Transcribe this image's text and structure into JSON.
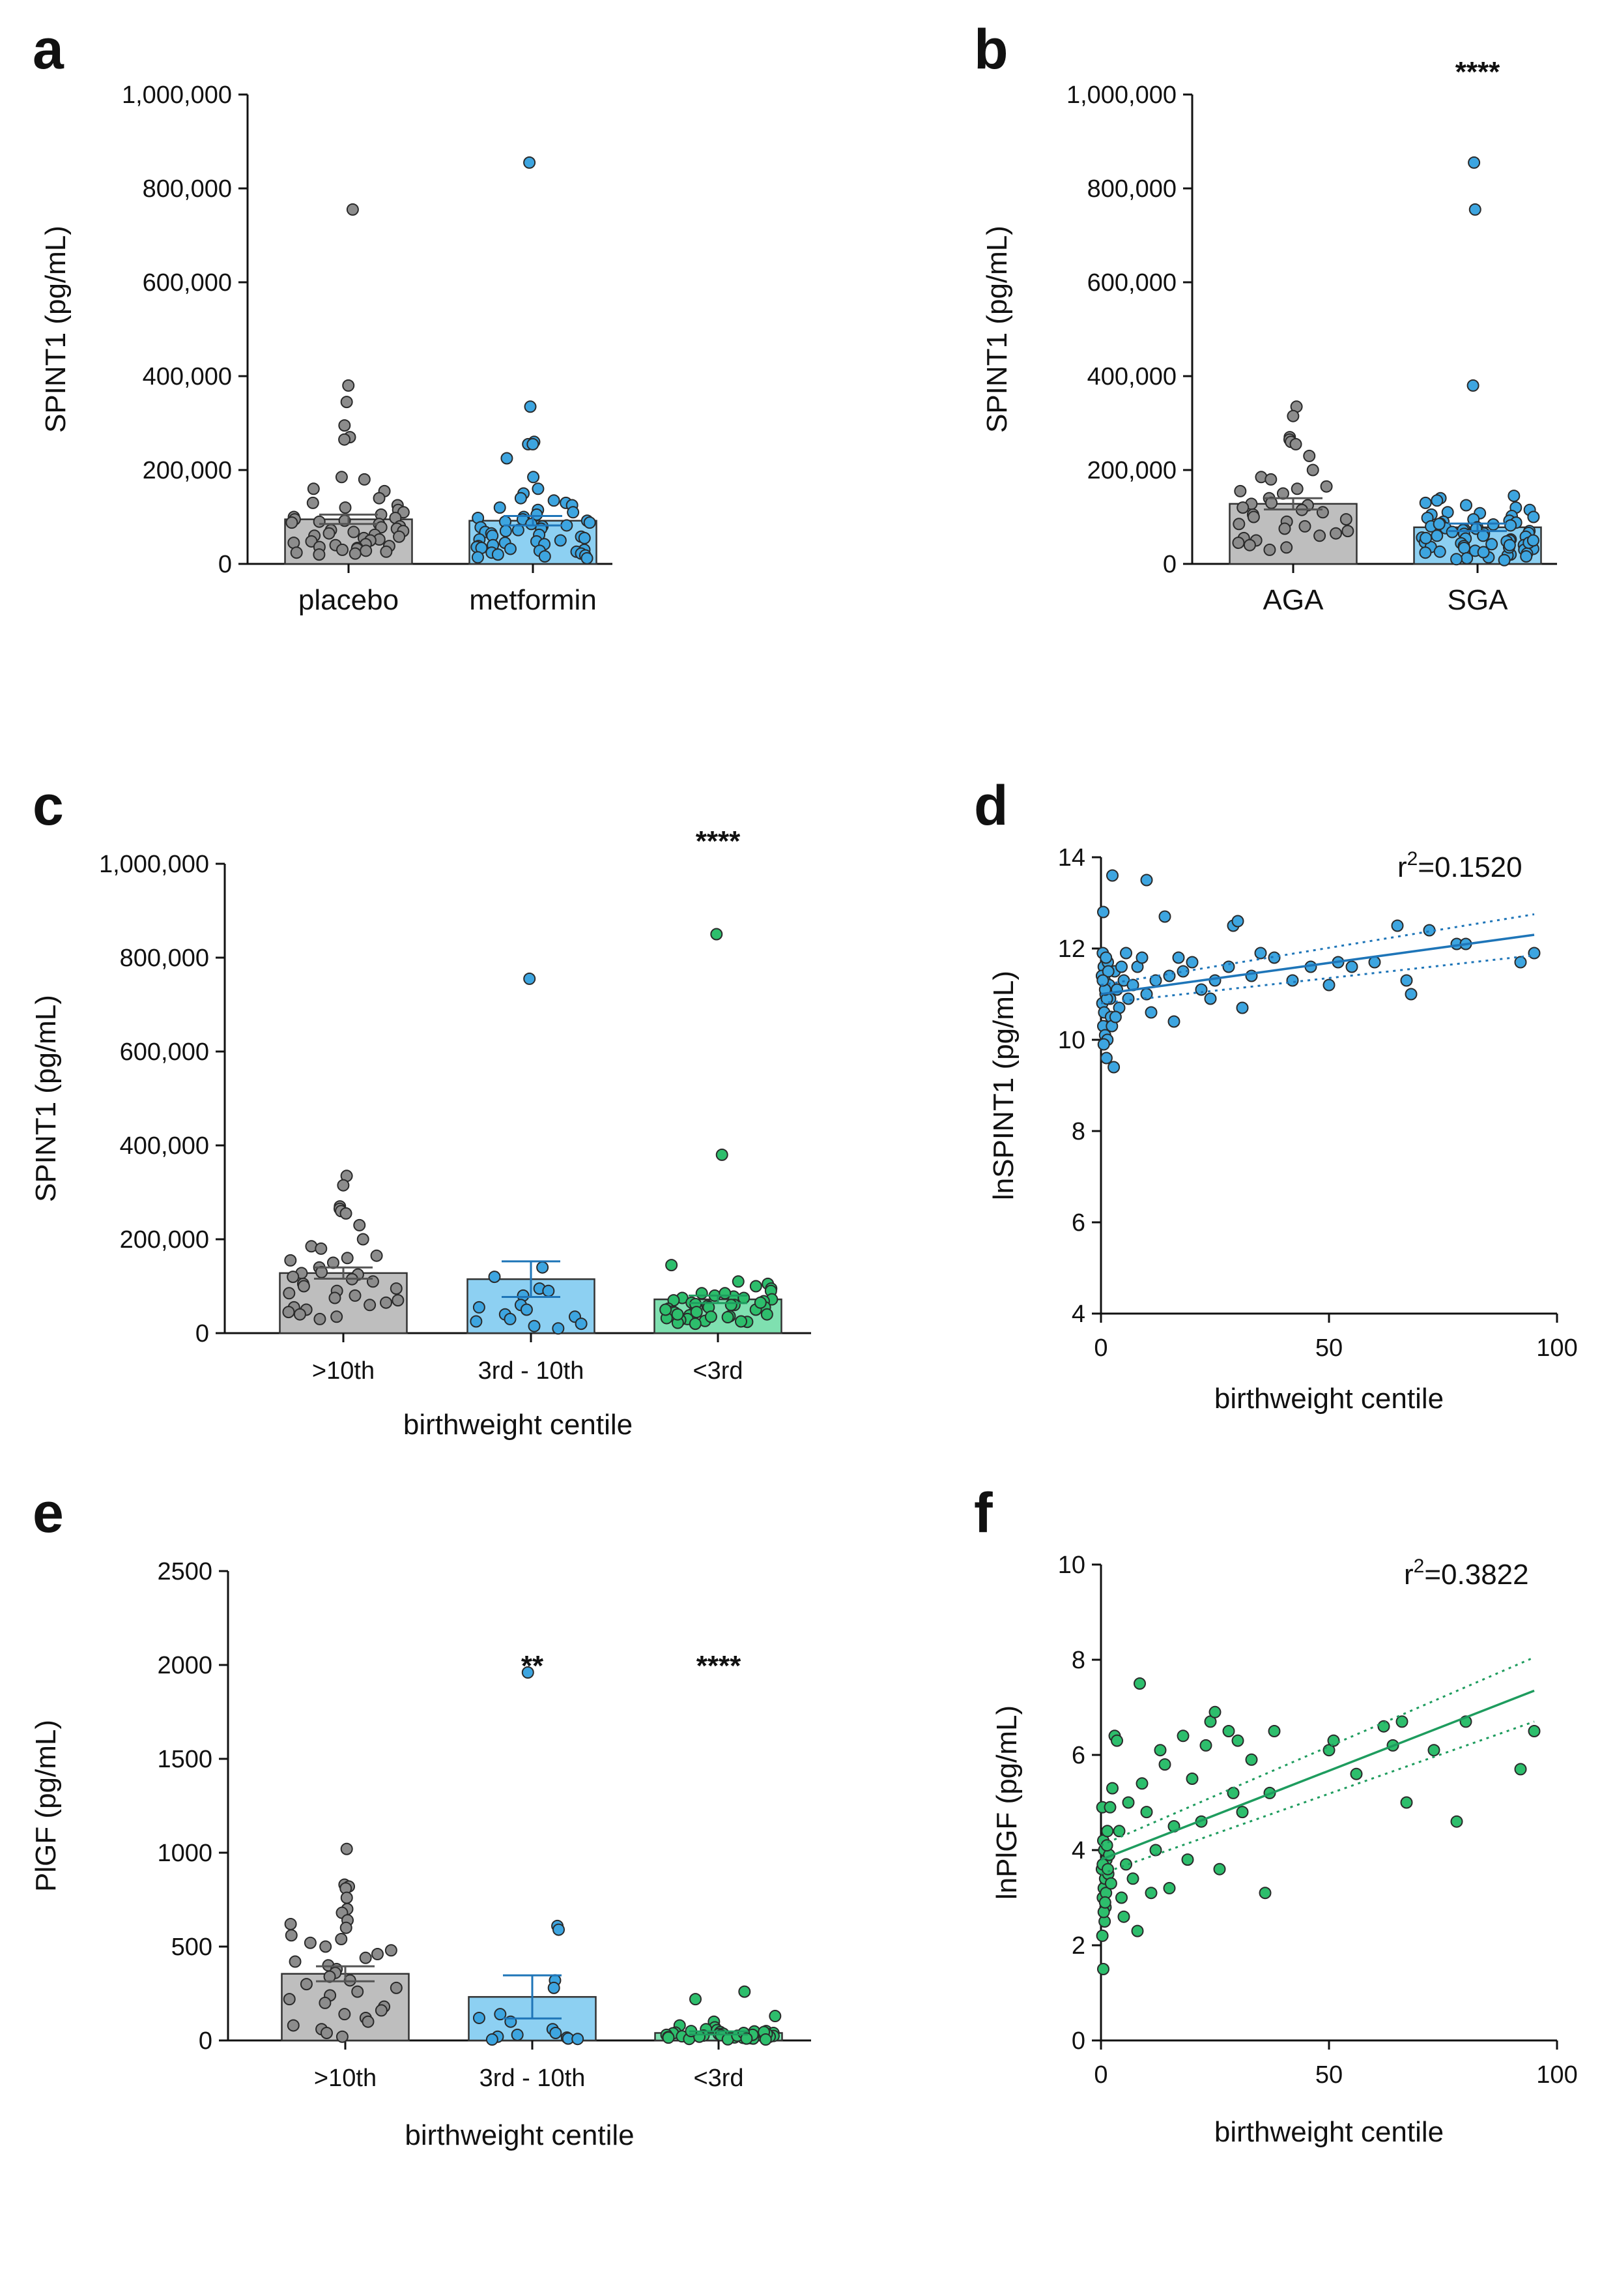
{
  "colors": {
    "grey_bar": "#BEBEBE",
    "grey_dot": "#8C8C8C",
    "blue_bar": "#8DD0F2",
    "blue_dot": "#3DA5E0",
    "blue_line": "#1E75B8",
    "green_bar": "#7FE0B0",
    "green_dot": "#2DBE6C",
    "green_line": "#1E9C5E",
    "axis": "#111111"
  },
  "chart_data": [
    {
      "panel": "a",
      "type": "bar",
      "ylabel": "SPINT1  (pg/mL)",
      "xlabel": "",
      "ylim": [
        0,
        1000000
      ],
      "yticks": [
        0,
        200000,
        400000,
        600000,
        800000,
        1000000
      ],
      "ytick_labels": [
        "0",
        "200,000",
        "400,000",
        "600,000",
        "800,000",
        "1,000,000"
      ],
      "categories": [
        "placebo",
        "metformin"
      ],
      "values": [
        95000,
        92000
      ],
      "errors": [
        10000,
        10000
      ],
      "points": [
        [
          755000,
          380000,
          345000,
          295000,
          270000,
          265000,
          185000,
          180000,
          160000,
          155000,
          140000,
          130000,
          125000,
          120000,
          115000,
          110000,
          105000,
          100000,
          98000,
          95000,
          92000,
          90000,
          88000,
          85000,
          80000,
          78000,
          75000,
          72000,
          70000,
          68000,
          65000,
          62000,
          60000,
          58000,
          55000,
          52000,
          50000,
          48000,
          45000,
          42000,
          40000,
          38000,
          36000,
          34000,
          32000,
          30000,
          28000,
          26000,
          24000,
          22000,
          20000
        ],
        [
          855000,
          335000,
          260000,
          255000,
          255000,
          225000,
          185000,
          160000,
          150000,
          140000,
          135000,
          130000,
          125000,
          120000,
          115000,
          110000,
          105000,
          100000,
          98000,
          95000,
          92000,
          90000,
          88000,
          85000,
          82000,
          80000,
          78000,
          75000,
          72000,
          70000,
          68000,
          65000,
          62000,
          60000,
          58000,
          55000,
          52000,
          50000,
          48000,
          45000,
          42000,
          40000,
          38000,
          36000,
          34000,
          32000,
          30000,
          28000,
          26000,
          24000,
          22000,
          20000,
          18000,
          16000,
          14000,
          12000
        ]
      ],
      "significance": [
        "",
        ""
      ]
    },
    {
      "panel": "b",
      "type": "bar",
      "ylabel": "SPINT1  (pg/mL)",
      "xlabel": "",
      "ylim": [
        0,
        1000000
      ],
      "yticks": [
        0,
        200000,
        400000,
        600000,
        800000,
        1000000
      ],
      "ytick_labels": [
        "0",
        "200,000",
        "400,000",
        "600,000",
        "800,000",
        "1,000,000"
      ],
      "categories": [
        "AGA",
        "SGA"
      ],
      "values": [
        128000,
        78000
      ],
      "errors": [
        12000,
        8000
      ],
      "points": [
        [
          335000,
          315000,
          270000,
          265000,
          260000,
          255000,
          230000,
          200000,
          185000,
          180000,
          165000,
          160000,
          155000,
          150000,
          140000,
          130000,
          128000,
          125000,
          120000,
          115000,
          110000,
          105000,
          100000,
          95000,
          90000,
          85000,
          80000,
          75000,
          70000,
          65000,
          60000,
          55000,
          50000,
          45000,
          40000,
          35000,
          30000
        ],
        [
          855000,
          755000,
          380000,
          145000,
          140000,
          135000,
          130000,
          125000,
          120000,
          115000,
          110000,
          108000,
          105000,
          102000,
          100000,
          98000,
          95000,
          92000,
          90000,
          88000,
          86000,
          84000,
          82000,
          80000,
          78000,
          76000,
          74000,
          72000,
          70000,
          68000,
          66000,
          64000,
          62000,
          60000,
          58000,
          56000,
          54000,
          52000,
          50000,
          48000,
          46000,
          44000,
          42000,
          40000,
          38000,
          36000,
          34000,
          32000,
          30000,
          28000,
          26000,
          24000,
          22000,
          20000,
          18000,
          16000,
          14000,
          12000,
          10000,
          8000,
          45000,
          55000,
          65000,
          75000,
          85000,
          35000,
          25000,
          40000,
          50000,
          60000
        ]
      ],
      "significance": [
        "",
        "****"
      ]
    },
    {
      "panel": "c",
      "type": "bar",
      "ylabel": "SPINT1 (pg/mL)",
      "xlabel": "birthweight centile",
      "ylim": [
        0,
        1000000
      ],
      "yticks": [
        0,
        200000,
        400000,
        600000,
        800000,
        1000000
      ],
      "ytick_labels": [
        "0",
        "200,000",
        "400,000",
        "600,000",
        "800,000",
        "1,000,000"
      ],
      "categories": [
        ">10th",
        "3rd - 10th",
        "<3rd"
      ],
      "values": [
        128000,
        115000,
        72000
      ],
      "errors": [
        12000,
        38000,
        8000
      ],
      "points": [
        [
          335000,
          315000,
          270000,
          265000,
          260000,
          255000,
          230000,
          200000,
          185000,
          180000,
          165000,
          160000,
          155000,
          150000,
          140000,
          130000,
          128000,
          125000,
          120000,
          115000,
          110000,
          105000,
          100000,
          95000,
          90000,
          85000,
          80000,
          75000,
          70000,
          65000,
          60000,
          55000,
          50000,
          45000,
          40000,
          35000,
          30000
        ],
        [
          755000,
          140000,
          120000,
          95000,
          90000,
          80000,
          60000,
          55000,
          50000,
          40000,
          35000,
          30000,
          25000,
          20000,
          15000,
          10000
        ],
        [
          850000,
          380000,
          145000,
          110000,
          105000,
          100000,
          95000,
          90000,
          85000,
          80000,
          78000,
          75000,
          72000,
          70000,
          68000,
          65000,
          62000,
          60000,
          58000,
          55000,
          52000,
          50000,
          48000,
          46000,
          44000,
          42000,
          40000,
          38000,
          36000,
          34000,
          32000,
          30000,
          28000,
          26000,
          24000,
          22000,
          20000,
          45000,
          55000,
          65000,
          75000,
          85000,
          35000,
          25000,
          40000,
          50000,
          60000
        ]
      ],
      "significance": [
        "",
        "",
        "****"
      ]
    },
    {
      "panel": "d",
      "type": "scatter",
      "ylabel": "lnSPINT1 (pg/mL)",
      "xlabel": "birthweight centile",
      "xlim": [
        0,
        100
      ],
      "ylim": [
        4,
        14
      ],
      "xticks": [
        0,
        50,
        100
      ],
      "yticks": [
        4,
        6,
        8,
        10,
        12,
        14
      ],
      "annotation_base": "r",
      "annotation_sup": "2",
      "annotation_rest": "=0.1520",
      "fit": {
        "x0": 0,
        "y0": 11.0,
        "x1": 95,
        "y1": 12.3
      },
      "ci_upper": {
        "x0": 0,
        "y0": 11.2,
        "x1": 95,
        "y1": 12.75
      },
      "ci_lower": {
        "x0": 0,
        "y0": 10.8,
        "x1": 95,
        "y1": 11.85
      },
      "points": [
        [
          0.5,
          12.8
        ],
        [
          2.5,
          13.6
        ],
        [
          10,
          13.5
        ],
        [
          0.4,
          11.9
        ],
        [
          0.6,
          11.6
        ],
        [
          0.8,
          11.3
        ],
        [
          1.0,
          11.0
        ],
        [
          0.3,
          10.8
        ],
        [
          0.7,
          10.6
        ],
        [
          0.5,
          10.3
        ],
        [
          0.9,
          10.1
        ],
        [
          1.2,
          9.6
        ],
        [
          1.5,
          11.7
        ],
        [
          1.8,
          11.2
        ],
        [
          2.0,
          10.9
        ],
        [
          2.2,
          10.5
        ],
        [
          2.8,
          9.4
        ],
        [
          0.2,
          11.4
        ],
        [
          1.1,
          11.8
        ],
        [
          1.4,
          10.0
        ],
        [
          0.6,
          9.9
        ],
        [
          3.0,
          11.5
        ],
        [
          3.5,
          11.1
        ],
        [
          4.0,
          10.7
        ],
        [
          4.5,
          11.6
        ],
        [
          5.0,
          11.3
        ],
        [
          5.5,
          11.9
        ],
        [
          6.0,
          10.9
        ],
        [
          7.0,
          11.2
        ],
        [
          8.0,
          11.6
        ],
        [
          9.0,
          11.8
        ],
        [
          10.0,
          11.0
        ],
        [
          11.0,
          10.6
        ],
        [
          12.0,
          11.3
        ],
        [
          14.0,
          12.7
        ],
        [
          15.0,
          11.4
        ],
        [
          16.0,
          10.4
        ],
        [
          17.0,
          11.8
        ],
        [
          18.0,
          11.5
        ],
        [
          20.0,
          11.7
        ],
        [
          22.0,
          11.1
        ],
        [
          24.0,
          10.9
        ],
        [
          25.0,
          11.3
        ],
        [
          28.0,
          11.6
        ],
        [
          29.0,
          12.5
        ],
        [
          30.0,
          12.6
        ],
        [
          31.0,
          10.7
        ],
        [
          33.0,
          11.4
        ],
        [
          35.0,
          11.9
        ],
        [
          38.0,
          11.8
        ],
        [
          42.0,
          11.3
        ],
        [
          46.0,
          11.6
        ],
        [
          50.0,
          11.2
        ],
        [
          52.0,
          11.7
        ],
        [
          55.0,
          11.6
        ],
        [
          60.0,
          11.7
        ],
        [
          65.0,
          12.5
        ],
        [
          67.0,
          11.3
        ],
        [
          68.0,
          11.0
        ],
        [
          72.0,
          12.4
        ],
        [
          78.0,
          12.1
        ],
        [
          80.0,
          12.1
        ],
        [
          92.0,
          11.7
        ],
        [
          95.0,
          11.9
        ],
        [
          1.6,
          11.5
        ],
        [
          2.4,
          10.3
        ],
        [
          3.2,
          10.5
        ],
        [
          1.3,
          10.9
        ],
        [
          0.9,
          11.1
        ],
        [
          0.4,
          11.3
        ]
      ]
    },
    {
      "panel": "e",
      "type": "bar",
      "ylabel": "PlGF (pg/mL)",
      "xlabel": "birthweight centile",
      "ylim": [
        0,
        2500
      ],
      "yticks": [
        0,
        500,
        1000,
        1500,
        2000,
        2500
      ],
      "ytick_labels": [
        "0",
        "500",
        "1000",
        "1500",
        "2000",
        "2500"
      ],
      "categories": [
        ">10th",
        "3rd - 10th",
        "<3rd"
      ],
      "values": [
        355,
        232,
        40
      ],
      "errors": [
        40,
        115,
        8
      ],
      "points": [
        [
          1020,
          830,
          820,
          810,
          760,
          700,
          680,
          640,
          620,
          600,
          560,
          540,
          520,
          500,
          480,
          460,
          440,
          420,
          400,
          380,
          360,
          340,
          320,
          300,
          280,
          260,
          240,
          220,
          200,
          180,
          160,
          140,
          120,
          100,
          80,
          60,
          40,
          20
        ],
        [
          1960,
          610,
          590,
          320,
          280,
          140,
          120,
          100,
          60,
          40,
          30,
          20,
          15,
          10,
          8,
          5
        ],
        [
          260,
          220,
          130,
          100,
          80,
          70,
          60,
          55,
          50,
          48,
          45,
          42,
          40,
          38,
          36,
          34,
          32,
          30,
          28,
          26,
          24,
          22,
          20,
          18,
          16,
          14,
          12,
          10,
          8,
          6,
          25,
          35,
          45,
          15,
          30,
          40,
          20,
          50,
          10,
          5
        ]
      ],
      "significance": [
        "",
        "**",
        "****"
      ]
    },
    {
      "panel": "f",
      "type": "scatter",
      "ylabel": "lnPlGF (pg/mL)",
      "xlabel": "birthweight centile",
      "xlim": [
        0,
        100
      ],
      "ylim": [
        0,
        10
      ],
      "xticks": [
        0,
        50,
        100
      ],
      "yticks": [
        0,
        2,
        4,
        6,
        8,
        10
      ],
      "annotation_base": "r",
      "annotation_sup": "2",
      "annotation_rest": "=0.3822",
      "fit": {
        "x0": 0,
        "y0": 3.8,
        "x1": 95,
        "y1": 7.35
      },
      "ci_upper": {
        "x0": 0,
        "y0": 4.1,
        "x1": 95,
        "y1": 8.05
      },
      "ci_lower": {
        "x0": 0,
        "y0": 3.5,
        "x1": 95,
        "y1": 6.7
      },
      "points": [
        [
          0.5,
          1.5
        ],
        [
          0.3,
          2.2
        ],
        [
          0.8,
          2.5
        ],
        [
          1.0,
          2.8
        ],
        [
          0.4,
          3.0
        ],
        [
          0.6,
          3.2
        ],
        [
          0.9,
          3.4
        ],
        [
          0.2,
          3.6
        ],
        [
          1.2,
          3.8
        ],
        [
          0.7,
          4.0
        ],
        [
          0.5,
          4.2
        ],
        [
          1.4,
          4.4
        ],
        [
          0.3,
          4.9
        ],
        [
          1.1,
          3.1
        ],
        [
          0.6,
          2.7
        ],
        [
          1.6,
          3.5
        ],
        [
          2.0,
          4.9
        ],
        [
          2.5,
          5.3
        ],
        [
          3.0,
          6.4
        ],
        [
          3.5,
          6.3
        ],
        [
          4.0,
          4.4
        ],
        [
          4.5,
          3.0
        ],
        [
          5.0,
          2.6
        ],
        [
          5.5,
          3.7
        ],
        [
          6.0,
          5.0
        ],
        [
          7.0,
          3.4
        ],
        [
          8.0,
          2.3
        ],
        [
          8.5,
          7.5
        ],
        [
          9.0,
          5.4
        ],
        [
          10.0,
          4.8
        ],
        [
          11.0,
          3.1
        ],
        [
          12.0,
          4.0
        ],
        [
          13.0,
          6.1
        ],
        [
          14.0,
          5.8
        ],
        [
          15.0,
          3.2
        ],
        [
          16.0,
          4.5
        ],
        [
          18.0,
          6.4
        ],
        [
          19.0,
          3.8
        ],
        [
          20.0,
          5.5
        ],
        [
          22.0,
          4.6
        ],
        [
          23.0,
          6.2
        ],
        [
          24.0,
          6.7
        ],
        [
          25.0,
          6.9
        ],
        [
          26.0,
          3.6
        ],
        [
          28.0,
          6.5
        ],
        [
          29.0,
          5.2
        ],
        [
          30.0,
          6.3
        ],
        [
          31.0,
          4.8
        ],
        [
          33.0,
          5.9
        ],
        [
          36.0,
          3.1
        ],
        [
          37.0,
          5.2
        ],
        [
          38.0,
          6.5
        ],
        [
          50.0,
          6.1
        ],
        [
          51.0,
          6.3
        ],
        [
          56.0,
          5.6
        ],
        [
          62.0,
          6.6
        ],
        [
          64.0,
          6.2
        ],
        [
          66.0,
          6.7
        ],
        [
          67.0,
          5.0
        ],
        [
          73.0,
          6.1
        ],
        [
          78.0,
          4.6
        ],
        [
          80.0,
          6.7
        ],
        [
          92.0,
          5.7
        ],
        [
          95.0,
          6.5
        ],
        [
          1.8,
          3.9
        ],
        [
          2.2,
          3.3
        ],
        [
          1.3,
          4.1
        ],
        [
          0.4,
          3.7
        ],
        [
          0.9,
          2.9
        ],
        [
          1.5,
          3.6
        ]
      ]
    }
  ]
}
